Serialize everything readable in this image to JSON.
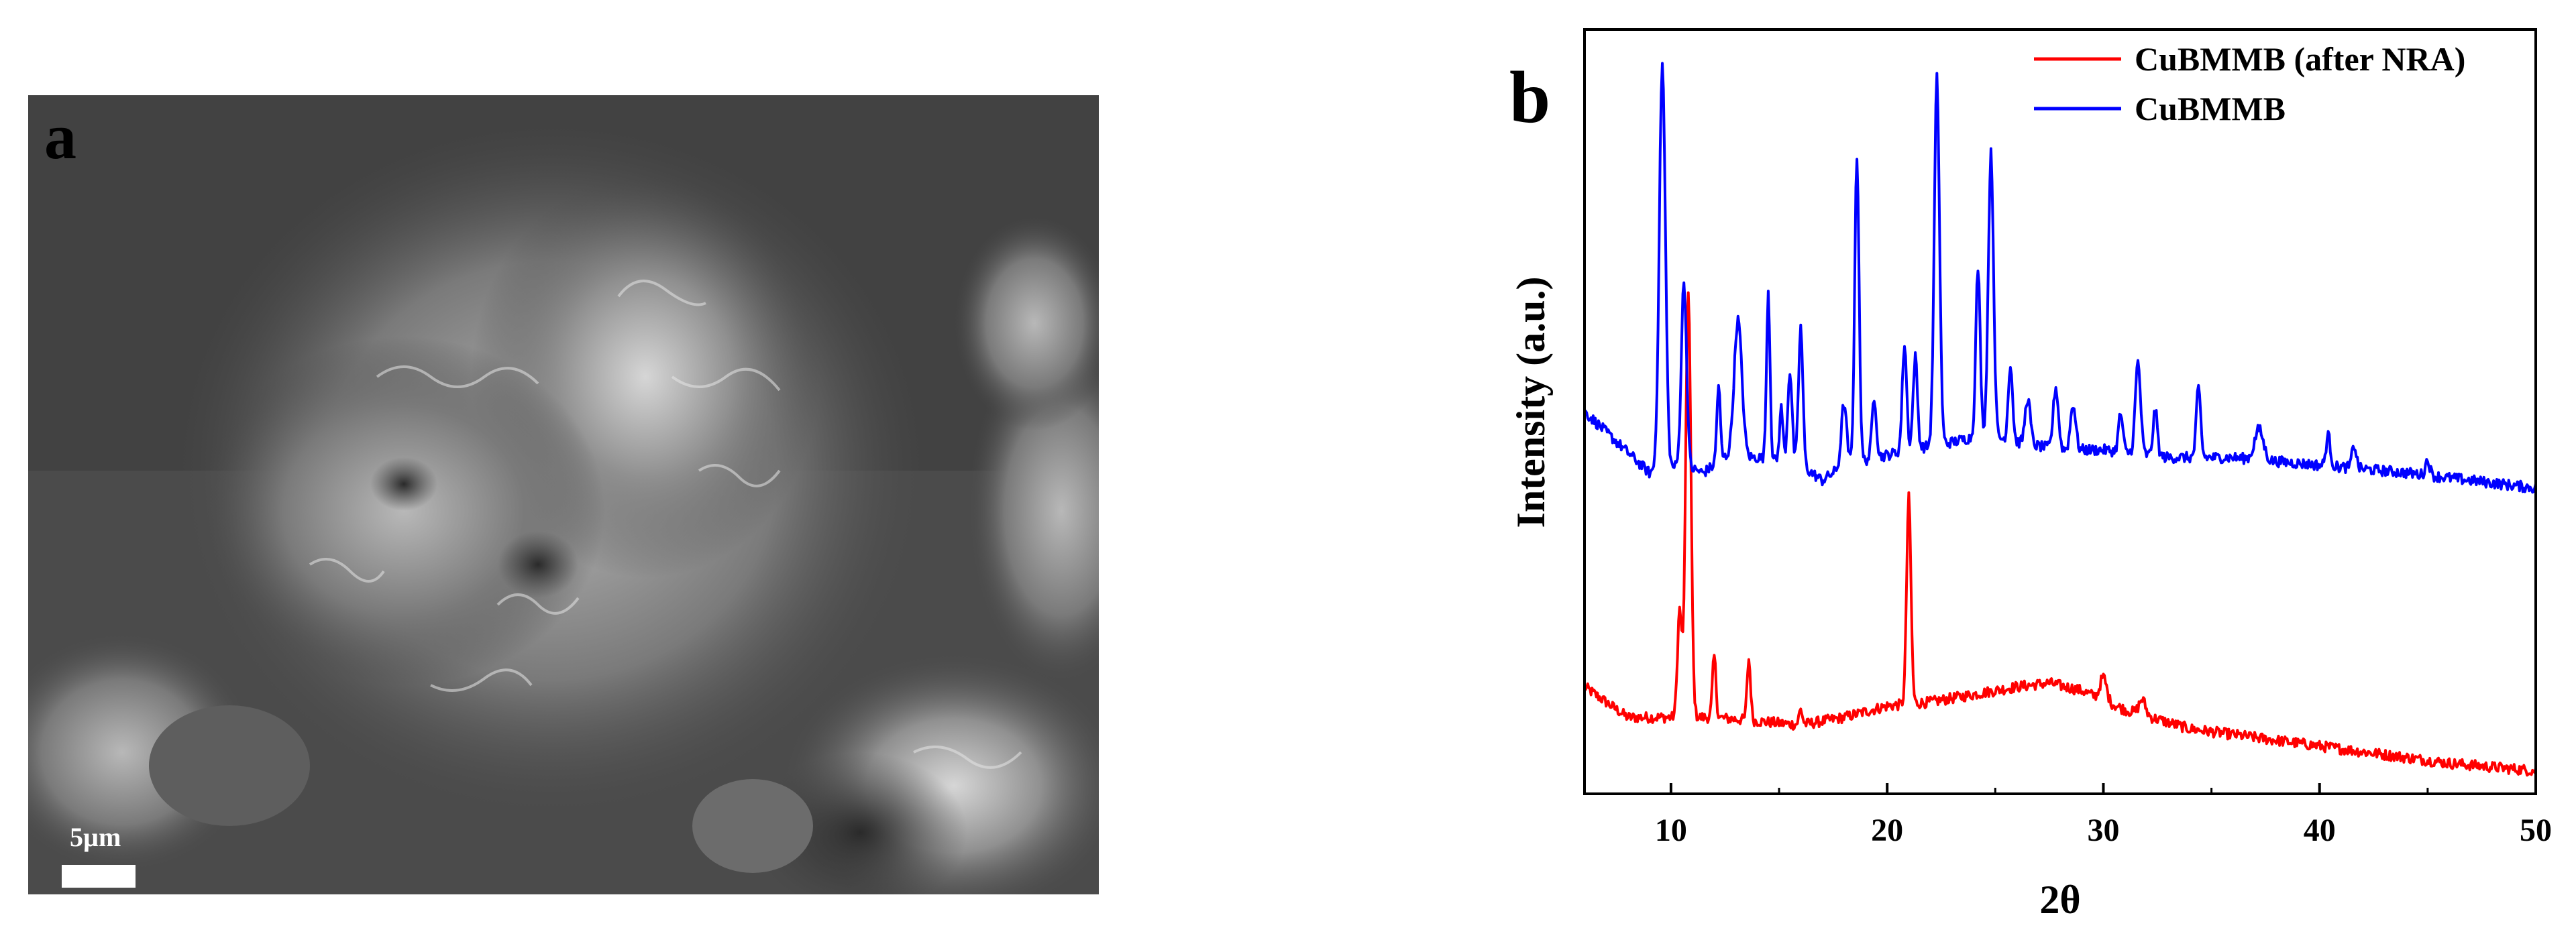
{
  "panel_a": {
    "letter": "a",
    "scale_label": "5µm"
  },
  "panel_b": {
    "letter": "b"
  },
  "chart_data": {
    "type": "line",
    "xlabel": "2θ",
    "ylabel": "Intensity (a.u.)",
    "xlim": [
      6,
      50
    ],
    "x_ticks": [
      10,
      20,
      30,
      40,
      50
    ],
    "x_tick_labels": [
      "10",
      "20",
      "30",
      "40",
      "50"
    ],
    "y_ticks_shown": false,
    "legend_position": "top-right",
    "series": [
      {
        "name": "CuBMMB (after NRA)",
        "color": "#ff0000",
        "baseline": [
          [
            6,
            0.14
          ],
          [
            8,
            0.1
          ],
          [
            9,
            0.1
          ],
          [
            10,
            0.1
          ],
          [
            12,
            0.1
          ],
          [
            14,
            0.095
          ],
          [
            16,
            0.09
          ],
          [
            18,
            0.1
          ],
          [
            20,
            0.115
          ],
          [
            22,
            0.12
          ],
          [
            24,
            0.13
          ],
          [
            26,
            0.14
          ],
          [
            27.5,
            0.145
          ],
          [
            29,
            0.135
          ],
          [
            31,
            0.11
          ],
          [
            34,
            0.085
          ],
          [
            38,
            0.07
          ],
          [
            42,
            0.055
          ],
          [
            46,
            0.04
          ],
          [
            50,
            0.03
          ]
        ],
        "peaks": [
          [
            10.4,
            0.14,
            0.1
          ],
          [
            10.8,
            0.56,
            0.12
          ],
          [
            12.0,
            0.08,
            0.08
          ],
          [
            13.6,
            0.08,
            0.08
          ],
          [
            16.0,
            0.02,
            0.08
          ],
          [
            21.0,
            0.27,
            0.1
          ],
          [
            30.0,
            0.03,
            0.15
          ],
          [
            31.8,
            0.02,
            0.15
          ]
        ]
      },
      {
        "name": "CuBMMB",
        "color": "#0000ff",
        "baseline": [
          [
            6,
            0.5
          ],
          [
            7.5,
            0.46
          ],
          [
            9,
            0.42
          ],
          [
            10.5,
            0.43
          ],
          [
            11.5,
            0.42
          ],
          [
            12.5,
            0.44
          ],
          [
            14,
            0.44
          ],
          [
            16,
            0.43
          ],
          [
            17,
            0.41
          ],
          [
            18,
            0.43
          ],
          [
            19.5,
            0.44
          ],
          [
            21,
            0.45
          ],
          [
            23,
            0.46
          ],
          [
            24.5,
            0.47
          ],
          [
            26,
            0.46
          ],
          [
            28,
            0.45
          ],
          [
            30,
            0.45
          ],
          [
            33,
            0.44
          ],
          [
            36,
            0.44
          ],
          [
            40,
            0.43
          ],
          [
            44,
            0.42
          ],
          [
            47,
            0.41
          ],
          [
            50,
            0.4
          ]
        ],
        "peaks": [
          [
            9.6,
            0.53,
            0.14
          ],
          [
            10.6,
            0.24,
            0.12
          ],
          [
            12.2,
            0.1,
            0.08
          ],
          [
            13.1,
            0.18,
            0.18
          ],
          [
            14.5,
            0.22,
            0.08
          ],
          [
            15.1,
            0.07,
            0.08
          ],
          [
            15.5,
            0.12,
            0.1
          ],
          [
            16.0,
            0.18,
            0.1
          ],
          [
            18.0,
            0.08,
            0.12
          ],
          [
            18.6,
            0.4,
            0.1
          ],
          [
            19.4,
            0.08,
            0.1
          ],
          [
            20.8,
            0.14,
            0.1
          ],
          [
            21.3,
            0.12,
            0.1
          ],
          [
            22.3,
            0.48,
            0.12
          ],
          [
            24.2,
            0.22,
            0.1
          ],
          [
            24.8,
            0.37,
            0.12
          ],
          [
            25.7,
            0.1,
            0.1
          ],
          [
            26.5,
            0.06,
            0.12
          ],
          [
            27.8,
            0.08,
            0.12
          ],
          [
            28.6,
            0.06,
            0.12
          ],
          [
            30.8,
            0.05,
            0.1
          ],
          [
            31.6,
            0.12,
            0.12
          ],
          [
            32.4,
            0.06,
            0.1
          ],
          [
            34.4,
            0.09,
            0.1
          ],
          [
            37.2,
            0.04,
            0.2
          ],
          [
            40.4,
            0.04,
            0.1
          ],
          [
            41.6,
            0.03,
            0.1
          ],
          [
            45.0,
            0.02,
            0.1
          ]
        ]
      }
    ]
  }
}
